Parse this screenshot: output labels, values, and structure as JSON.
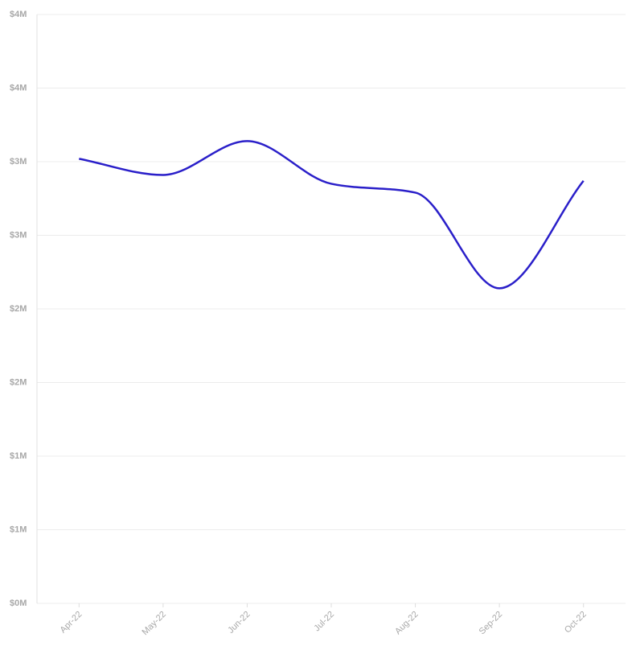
{
  "chart_data": {
    "type": "line",
    "categories": [
      "Apr-22",
      "May-22",
      "Jun-22",
      "Jul-22",
      "Aug-22",
      "Sep-22",
      "Oct-22"
    ],
    "series": [
      {
        "color": "#2a1fc9",
        "values": [
          3020000,
          2910000,
          3140000,
          2850000,
          2790000,
          2140000,
          2870000
        ]
      }
    ],
    "ylim": [
      0,
      4000000
    ],
    "yticks": [
      {
        "value": 0,
        "label": "$0M"
      },
      {
        "value": 500000,
        "label": "$1M"
      },
      {
        "value": 1000000,
        "label": "$1M"
      },
      {
        "value": 1500000,
        "label": "$2M"
      },
      {
        "value": 2000000,
        "label": "$2M"
      },
      {
        "value": 2500000,
        "label": "$3M"
      },
      {
        "value": 3000000,
        "label": "$3M"
      },
      {
        "value": 3500000,
        "label": "$4M"
      },
      {
        "value": 4000000,
        "label": "$4M"
      }
    ],
    "grid": true
  }
}
